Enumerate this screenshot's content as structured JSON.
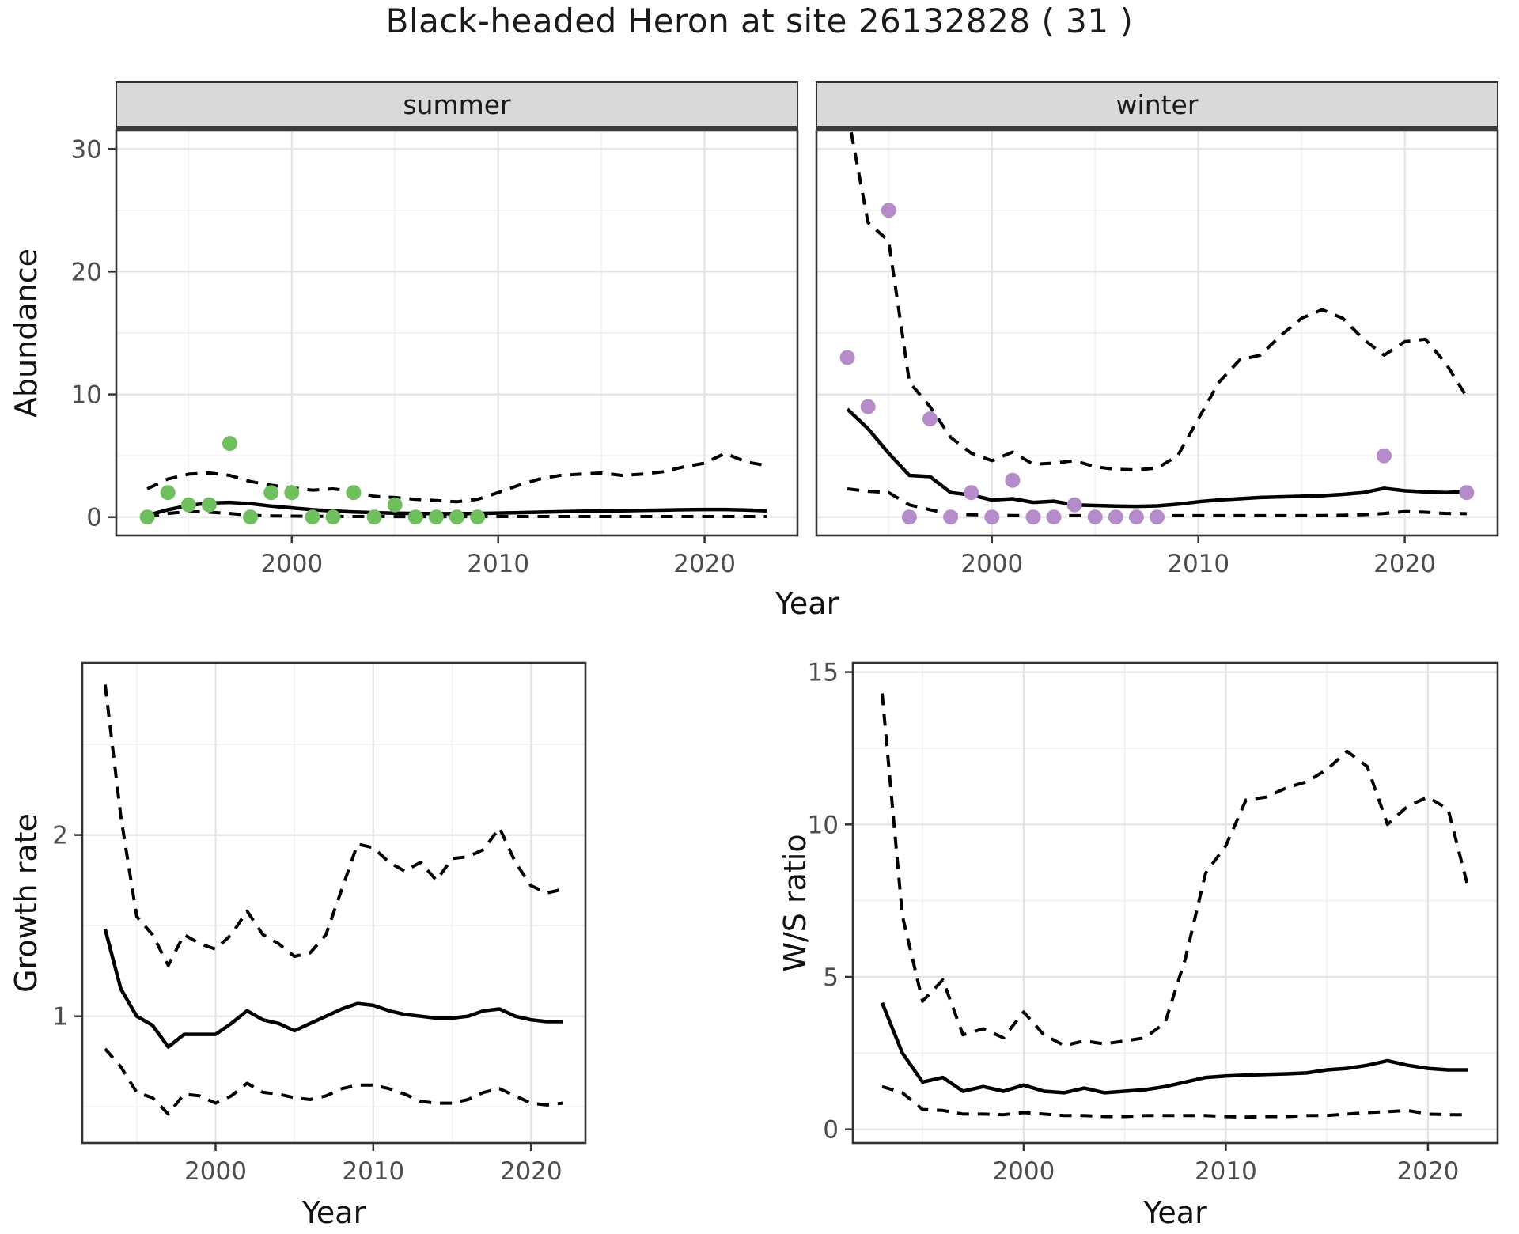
{
  "title": "Black-headed Heron at site 26132828 ( 31 )",
  "colors": {
    "summer_point": "#70bf5f",
    "winter_point": "#b68bc9",
    "line": "#000000",
    "strip_bg": "#d9d9d9",
    "strip_border": "#3b3b3b",
    "panel_border": "#333333",
    "grid_major": "#e4e4e4",
    "grid_minor": "#f1f1f1",
    "tick_text": "#4d4d4d",
    "title_text": "#1a1a1a"
  },
  "chart_data": [
    {
      "name": "abundance-summer",
      "type": "line",
      "facet": "summer",
      "ylabel": "Abundance",
      "xlabel": "Year",
      "xlim": [
        1991.5,
        2024.5
      ],
      "ylim": [
        -1.5,
        31.5
      ],
      "xticks": [
        "2000",
        "2010",
        "2020"
      ],
      "xtick_years": [
        2000,
        2010,
        2020
      ],
      "yticks": [
        "0",
        "10",
        "20",
        "30"
      ],
      "ytick_values": [
        0,
        10,
        20,
        30
      ],
      "x_minor": [
        1995,
        2005,
        2015
      ],
      "y_minor": [
        5,
        15,
        25
      ],
      "grid": true,
      "legend": "none",
      "series": [
        {
          "name": "fit",
          "style": "solid",
          "x0": 1993,
          "y": [
            0.15,
            0.6,
            0.95,
            1.15,
            1.2,
            1.1,
            0.9,
            0.75,
            0.6,
            0.5,
            0.42,
            0.36,
            0.32,
            0.3,
            0.28,
            0.28,
            0.3,
            0.33,
            0.36,
            0.4,
            0.44,
            0.47,
            0.5,
            0.52,
            0.55,
            0.57,
            0.6,
            0.62,
            0.62,
            0.58,
            0.52
          ]
        },
        {
          "name": "upper_ci",
          "style": "dashed",
          "x0": 1993,
          "y": [
            2.3,
            3.1,
            3.5,
            3.6,
            3.4,
            2.9,
            2.6,
            2.4,
            2.2,
            2.3,
            2.1,
            1.7,
            1.6,
            1.45,
            1.35,
            1.25,
            1.45,
            2.0,
            2.6,
            3.1,
            3.4,
            3.5,
            3.6,
            3.4,
            3.5,
            3.7,
            4.1,
            4.4,
            5.2,
            4.5,
            4.2
          ]
        },
        {
          "name": "lower_ci",
          "style": "dashed",
          "x0": 1993,
          "y": [
            0.02,
            0.3,
            0.45,
            0.4,
            0.3,
            0.15,
            0.1,
            0.08,
            0.06,
            0.06,
            0.05,
            0.05,
            0.04,
            0.04,
            0.04,
            0.04,
            0.04,
            0.05,
            0.05,
            0.05,
            0.05,
            0.05,
            0.05,
            0.05,
            0.05,
            0.05,
            0.05,
            0.05,
            0.05,
            0.05,
            0.05
          ]
        },
        {
          "name": "observed",
          "style": "points",
          "color_key": "summer_point",
          "x": [
            1993,
            1994,
            1995,
            1996,
            1997,
            1998,
            1999,
            2000,
            2001,
            2002,
            2003,
            2004,
            2005,
            2006,
            2007,
            2008,
            2009
          ],
          "y": [
            0,
            2,
            1,
            1,
            6,
            0,
            2,
            2,
            0,
            0,
            2,
            0,
            1,
            0,
            0,
            0,
            0
          ]
        }
      ]
    },
    {
      "name": "abundance-winter",
      "type": "line",
      "facet": "winter",
      "ylabel": "",
      "xlabel": "Year",
      "xlim": [
        1991.5,
        2024.5
      ],
      "ylim": [
        -1.5,
        31.5
      ],
      "xticks": [
        "2000",
        "2010",
        "2020"
      ],
      "xtick_years": [
        2000,
        2010,
        2020
      ],
      "yticks": [],
      "ytick_values": [
        0,
        10,
        20,
        30
      ],
      "x_minor": [
        1995,
        2005,
        2015
      ],
      "y_minor": [
        5,
        15,
        25
      ],
      "grid": true,
      "legend": "none",
      "series": [
        {
          "name": "fit",
          "style": "solid",
          "x0": 1993,
          "y": [
            8.8,
            7.2,
            5.2,
            3.4,
            3.3,
            2.0,
            1.8,
            1.4,
            1.5,
            1.2,
            1.3,
            1.0,
            0.95,
            0.9,
            0.88,
            0.92,
            1.05,
            1.25,
            1.4,
            1.5,
            1.6,
            1.65,
            1.7,
            1.75,
            1.85,
            2.0,
            2.35,
            2.15,
            2.05,
            2.0,
            2.1
          ]
        },
        {
          "name": "upper_ci",
          "style": "dashed",
          "x0": 1993,
          "y": [
            33,
            24,
            22.5,
            11,
            9,
            6.5,
            5.2,
            4.6,
            5.3,
            4.3,
            4.4,
            4.6,
            4.1,
            3.9,
            3.85,
            4.0,
            5.0,
            8.0,
            11.0,
            12.8,
            13.2,
            14.8,
            16.2,
            16.9,
            16.2,
            14.5,
            13.2,
            14.3,
            14.5,
            12.5,
            9.8
          ]
        },
        {
          "name": "lower_ci",
          "style": "dashed",
          "x0": 1993,
          "y": [
            2.3,
            2.1,
            2.0,
            1.0,
            0.6,
            0.25,
            0.2,
            0.15,
            0.13,
            0.12,
            0.12,
            0.12,
            0.12,
            0.12,
            0.12,
            0.12,
            0.12,
            0.12,
            0.12,
            0.12,
            0.12,
            0.12,
            0.12,
            0.13,
            0.15,
            0.2,
            0.3,
            0.45,
            0.4,
            0.3,
            0.28
          ]
        },
        {
          "name": "observed",
          "style": "points",
          "color_key": "winter_point",
          "x": [
            1993,
            1994,
            1995,
            1996,
            1997,
            1998,
            1999,
            2000,
            2001,
            2002,
            2003,
            2004,
            2005,
            2006,
            2007,
            2008,
            2019,
            2023
          ],
          "y": [
            13,
            9,
            25,
            0,
            8,
            0,
            2,
            0,
            3,
            0,
            0,
            1,
            0,
            0,
            0,
            0,
            5,
            2
          ]
        }
      ]
    },
    {
      "name": "growth-rate",
      "type": "line",
      "facet": null,
      "ylabel": "Growth rate",
      "xlabel": "Year",
      "xlim": [
        1991.55,
        2023.45
      ],
      "ylim": [
        0.3,
        2.95
      ],
      "xticks": [
        "2000",
        "2010",
        "2020"
      ],
      "xtick_years": [
        2000,
        2010,
        2020
      ],
      "yticks": [
        "1",
        "2"
      ],
      "ytick_values": [
        1,
        2
      ],
      "x_minor": [
        1995,
        2005,
        2015
      ],
      "y_minor": [
        0.5,
        1.5,
        2.5
      ],
      "grid": true,
      "legend": "none",
      "series": [
        {
          "name": "fit",
          "style": "solid",
          "x0": 1993,
          "y": [
            1.48,
            1.15,
            1.0,
            0.95,
            0.83,
            0.9,
            0.9,
            0.9,
            0.96,
            1.03,
            0.98,
            0.96,
            0.92,
            0.96,
            1.0,
            1.04,
            1.07,
            1.06,
            1.03,
            1.01,
            1.0,
            0.99,
            0.99,
            1.0,
            1.03,
            1.04,
            1.0,
            0.98,
            0.97,
            0.97
          ]
        },
        {
          "name": "upper_ci",
          "style": "dashed",
          "x0": 1993,
          "y": [
            2.83,
            2.1,
            1.55,
            1.45,
            1.28,
            1.45,
            1.4,
            1.37,
            1.45,
            1.58,
            1.45,
            1.4,
            1.33,
            1.35,
            1.45,
            1.7,
            1.95,
            1.93,
            1.85,
            1.8,
            1.85,
            1.75,
            1.87,
            1.88,
            1.92,
            2.04,
            1.85,
            1.72,
            1.68,
            1.7
          ]
        },
        {
          "name": "lower_ci",
          "style": "dashed",
          "x0": 1993,
          "y": [
            0.82,
            0.72,
            0.58,
            0.55,
            0.46,
            0.57,
            0.56,
            0.52,
            0.56,
            0.63,
            0.58,
            0.57,
            0.55,
            0.54,
            0.56,
            0.6,
            0.62,
            0.62,
            0.6,
            0.57,
            0.53,
            0.52,
            0.52,
            0.54,
            0.58,
            0.6,
            0.56,
            0.52,
            0.51,
            0.52
          ]
        }
      ]
    },
    {
      "name": "ws-ratio",
      "type": "line",
      "facet": null,
      "ylabel": "W/S ratio",
      "xlabel": "Year",
      "xlim": [
        1991.55,
        2023.45
      ],
      "ylim": [
        -0.45,
        15.3
      ],
      "xticks": [
        "2000",
        "2010",
        "2020"
      ],
      "xtick_years": [
        2000,
        2010,
        2020
      ],
      "yticks": [
        "0",
        "5",
        "10",
        "15"
      ],
      "ytick_values": [
        0,
        5,
        10,
        15
      ],
      "x_minor": [
        1995,
        2005,
        2015
      ],
      "y_minor": [
        2.5,
        7.5,
        12.5
      ],
      "grid": true,
      "legend": "none",
      "series": [
        {
          "name": "fit",
          "style": "solid",
          "x0": 1993,
          "y": [
            4.15,
            2.5,
            1.55,
            1.7,
            1.25,
            1.4,
            1.25,
            1.45,
            1.25,
            1.2,
            1.35,
            1.2,
            1.25,
            1.3,
            1.4,
            1.55,
            1.7,
            1.75,
            1.78,
            1.8,
            1.82,
            1.85,
            1.95,
            2.0,
            2.1,
            2.25,
            2.1,
            2.0,
            1.95,
            1.95
          ]
        },
        {
          "name": "upper_ci",
          "style": "dashed",
          "x0": 1993,
          "y": [
            14.3,
            7.0,
            4.2,
            4.9,
            3.1,
            3.3,
            3.0,
            3.85,
            3.1,
            2.75,
            2.9,
            2.8,
            2.9,
            3.0,
            3.5,
            5.6,
            8.4,
            9.3,
            10.8,
            10.9,
            11.2,
            11.4,
            11.8,
            12.4,
            11.9,
            10.0,
            10.6,
            10.9,
            10.5,
            7.9
          ]
        },
        {
          "name": "lower_ci",
          "style": "dashed",
          "x0": 1993,
          "y": [
            1.4,
            1.2,
            0.65,
            0.62,
            0.5,
            0.5,
            0.48,
            0.55,
            0.5,
            0.45,
            0.45,
            0.42,
            0.42,
            0.45,
            0.45,
            0.45,
            0.45,
            0.42,
            0.4,
            0.42,
            0.42,
            0.45,
            0.45,
            0.5,
            0.55,
            0.58,
            0.62,
            0.5,
            0.48,
            0.48
          ]
        }
      ]
    }
  ]
}
